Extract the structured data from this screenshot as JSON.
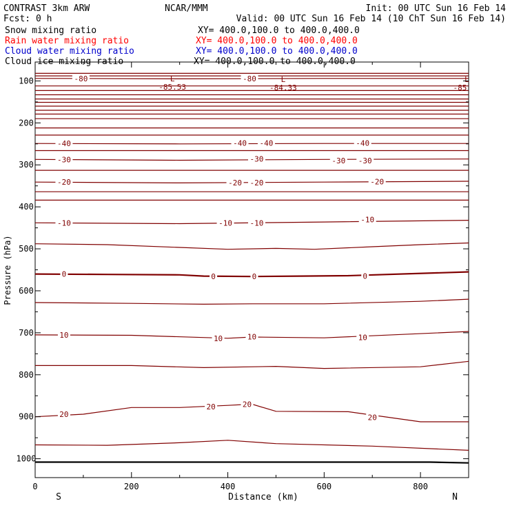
{
  "header": {
    "model": "CONTRAST  3km ARW",
    "center": "NCAR/MMM",
    "init": "Init: 00 UTC Sun 16 Feb 14",
    "fcst": "Fcst:     0 h",
    "valid": "Valid: 00 UTC Sun 16 Feb 14 (10 ChT Sun 16 Feb 14)"
  },
  "legend": [
    {
      "label": "Snow mixing ratio",
      "xy": "XY= 400.0,100.0 to 400.0,400.0",
      "color": "#000000"
    },
    {
      "label": "Rain water mixing ratio",
      "xy": "XY= 400.0,100.0 to 400.0,400.0",
      "color": "#ff0000"
    },
    {
      "label": "Cloud water mixing ratio",
      "xy": "XY= 400.0,100.0 to 400.0,400.0",
      "color": "#0000cc"
    },
    {
      "label": "Cloud ice mixing ratio",
      "xy": "XY= 400.0,100.0 to 400.0,400.0",
      "color": "#000000"
    }
  ],
  "chart_data": {
    "type": "contour",
    "xlabel": "Distance (km)",
    "ylabel": "Pressure (hPa)",
    "xlim": [
      0,
      900
    ],
    "ylim": [
      1045,
      55
    ],
    "x_ticks": [
      0,
      200,
      400,
      600,
      800
    ],
    "y_ticks": [
      100,
      200,
      300,
      400,
      500,
      600,
      700,
      800,
      900,
      1000
    ],
    "x_end_labels": {
      "left": "S",
      "right": "N"
    },
    "contour_color": "#800000",
    "ground_color": "#000000",
    "contours": [
      {
        "pts": [
          [
            0,
            82
          ],
          [
            900,
            82
          ]
        ]
      },
      {
        "pts": [
          [
            0,
            88
          ],
          [
            900,
            88
          ]
        ]
      },
      {
        "pts": [
          [
            0,
            94
          ],
          [
            50,
            94
          ],
          [
            300,
            95
          ],
          [
            600,
            94
          ],
          [
            900,
            94
          ]
        ],
        "labels": [
          {
            "x": 95,
            "y": 94,
            "text": "-80"
          },
          {
            "x": 445,
            "y": 94,
            "text": "-80"
          }
        ]
      },
      {
        "pts": [
          [
            0,
            112
          ],
          [
            900,
            112
          ]
        ]
      },
      {
        "pts": [
          [
            0,
            123
          ],
          [
            900,
            123
          ]
        ]
      },
      {
        "pts": [
          [
            0,
            133
          ],
          [
            900,
            133
          ]
        ]
      },
      {
        "pts": [
          [
            0,
            143
          ],
          [
            900,
            143
          ]
        ]
      },
      {
        "pts": [
          [
            0,
            151
          ],
          [
            900,
            151
          ]
        ]
      },
      {
        "pts": [
          [
            0,
            160
          ],
          [
            900,
            160
          ]
        ]
      },
      {
        "pts": [
          [
            0,
            170
          ],
          [
            900,
            170
          ]
        ]
      },
      {
        "pts": [
          [
            0,
            179
          ],
          [
            900,
            179
          ]
        ]
      },
      {
        "pts": [
          [
            0,
            190
          ],
          [
            900,
            190
          ]
        ]
      },
      {
        "pts": [
          [
            0,
            212
          ],
          [
            900,
            212
          ]
        ]
      },
      {
        "pts": [
          [
            0,
            229
          ],
          [
            900,
            229
          ]
        ]
      },
      {
        "pts": [
          [
            0,
            249
          ],
          [
            300,
            250
          ],
          [
            600,
            249
          ],
          [
            900,
            249
          ]
        ],
        "labels": [
          {
            "x": 60,
            "y": 249,
            "text": "-40"
          },
          {
            "x": 425,
            "y": 248,
            "text": "-40"
          },
          {
            "x": 480,
            "y": 248,
            "text": "-40"
          },
          {
            "x": 680,
            "y": 248,
            "text": "-40"
          }
        ]
      },
      {
        "pts": [
          [
            0,
            266
          ],
          [
            900,
            266
          ]
        ]
      },
      {
        "pts": [
          [
            0,
            287
          ],
          [
            300,
            289
          ],
          [
            600,
            287
          ],
          [
            900,
            286
          ]
        ],
        "labels": [
          {
            "x": 60,
            "y": 287,
            "text": "-30"
          },
          {
            "x": 460,
            "y": 286,
            "text": "-30"
          },
          {
            "x": 630,
            "y": 290,
            "text": "-30"
          },
          {
            "x": 685,
            "y": 290,
            "text": "-30"
          }
        ]
      },
      {
        "pts": [
          [
            0,
            313
          ],
          [
            900,
            313
          ]
        ]
      },
      {
        "pts": [
          [
            0,
            341
          ],
          [
            300,
            343
          ],
          [
            600,
            341
          ],
          [
            900,
            339
          ]
        ],
        "labels": [
          {
            "x": 60,
            "y": 341,
            "text": "-20"
          },
          {
            "x": 415,
            "y": 342,
            "text": "-20"
          },
          {
            "x": 460,
            "y": 342,
            "text": "-20"
          },
          {
            "x": 710,
            "y": 340,
            "text": "-20"
          }
        ]
      },
      {
        "pts": [
          [
            0,
            364
          ],
          [
            900,
            364
          ]
        ]
      },
      {
        "pts": [
          [
            0,
            384
          ],
          [
            900,
            384
          ]
        ]
      },
      {
        "pts": [
          [
            0,
            438
          ],
          [
            300,
            440
          ],
          [
            600,
            436
          ],
          [
            900,
            432
          ]
        ],
        "labels": [
          {
            "x": 60,
            "y": 438,
            "text": "-10"
          },
          {
            "x": 395,
            "y": 438,
            "text": "-10"
          },
          {
            "x": 460,
            "y": 438,
            "text": "-10"
          },
          {
            "x": 690,
            "y": 430,
            "text": "-10"
          }
        ]
      },
      {
        "pts": [
          [
            0,
            488
          ],
          [
            150,
            490
          ],
          [
            400,
            501
          ],
          [
            500,
            499
          ],
          [
            580,
            501
          ],
          [
            700,
            495
          ],
          [
            800,
            490
          ],
          [
            900,
            486
          ]
        ]
      },
      {
        "pts": [
          [
            0,
            560
          ],
          [
            150,
            561
          ],
          [
            300,
            562
          ],
          [
            350,
            565
          ],
          [
            450,
            566
          ],
          [
            550,
            565
          ],
          [
            650,
            564
          ],
          [
            900,
            555
          ]
        ],
        "width": 2.2,
        "labels": [
          {
            "x": 60,
            "y": 560,
            "text": "0"
          },
          {
            "x": 370,
            "y": 566,
            "text": "0"
          },
          {
            "x": 455,
            "y": 566,
            "text": "0"
          },
          {
            "x": 685,
            "y": 565,
            "text": "0"
          }
        ]
      },
      {
        "pts": [
          [
            0,
            628
          ],
          [
            200,
            630
          ],
          [
            350,
            632
          ],
          [
            450,
            631
          ],
          [
            600,
            631
          ],
          [
            800,
            625
          ],
          [
            900,
            620
          ]
        ]
      },
      {
        "pts": [
          [
            0,
            705
          ],
          [
            200,
            706
          ],
          [
            400,
            713
          ],
          [
            450,
            710
          ],
          [
            600,
            712
          ],
          [
            900,
            697
          ]
        ],
        "labels": [
          {
            "x": 60,
            "y": 705,
            "text": "10"
          },
          {
            "x": 380,
            "y": 713,
            "text": "10"
          },
          {
            "x": 450,
            "y": 709,
            "text": "10"
          },
          {
            "x": 680,
            "y": 711,
            "text": "10"
          }
        ]
      },
      {
        "pts": [
          [
            0,
            778
          ],
          [
            200,
            778
          ],
          [
            350,
            783
          ],
          [
            500,
            780
          ],
          [
            600,
            785
          ],
          [
            800,
            781
          ],
          [
            900,
            768
          ]
        ]
      },
      {
        "pts": [
          [
            0,
            900
          ],
          [
            100,
            894
          ],
          [
            200,
            878
          ],
          [
            300,
            878
          ],
          [
            400,
            873
          ],
          [
            450,
            870
          ],
          [
            500,
            887
          ],
          [
            650,
            888
          ],
          [
            800,
            912
          ],
          [
            900,
            912
          ]
        ],
        "labels": [
          {
            "x": 60,
            "y": 894,
            "text": "20"
          },
          {
            "x": 365,
            "y": 876,
            "text": "20"
          },
          {
            "x": 440,
            "y": 870,
            "text": "20"
          },
          {
            "x": 700,
            "y": 901,
            "text": "20"
          }
        ]
      },
      {
        "pts": [
          [
            0,
            967
          ],
          [
            150,
            968
          ],
          [
            300,
            962
          ],
          [
            400,
            956
          ],
          [
            500,
            964
          ],
          [
            700,
            970
          ],
          [
            900,
            980
          ]
        ]
      }
    ],
    "ground": {
      "pts": [
        [
          0,
          1008
        ],
        [
          820,
          1008
        ],
        [
          900,
          1010
        ]
      ]
    },
    "minima": [
      {
        "x": 285,
        "y": 103,
        "text": "-85.53"
      },
      {
        "x": 515,
        "y": 104,
        "text": "-84.33"
      },
      {
        "x": 882,
        "y": 104,
        "text": "-85"
      }
    ]
  }
}
